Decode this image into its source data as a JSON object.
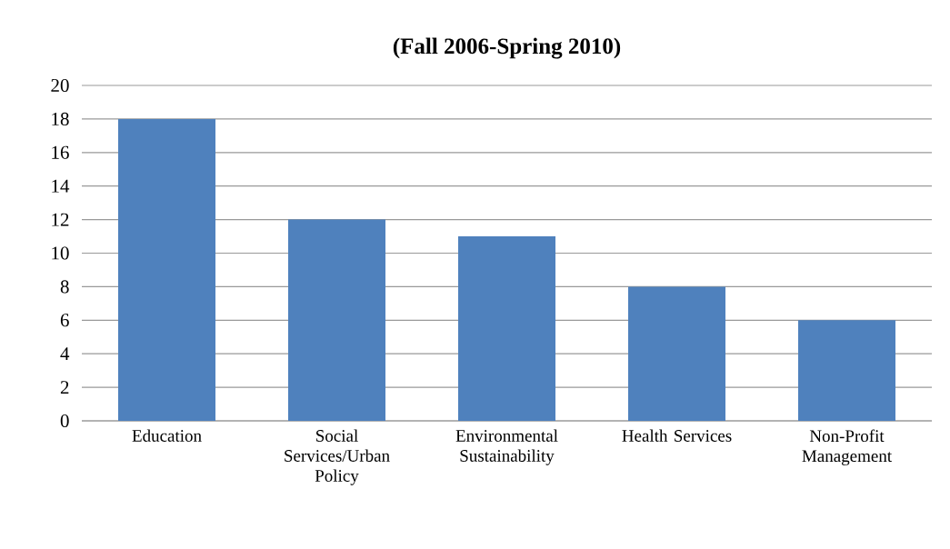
{
  "chart_data": {
    "type": "bar",
    "title": "(Fall 2006-Spring 2010)",
    "categories": [
      "Education",
      "Social Services/Urban Policy",
      "Environmental Sustainability",
      "Health Services",
      "Non-Profit Management"
    ],
    "values": [
      18,
      12,
      11,
      8,
      6
    ],
    "color": "#4f81bd",
    "ylim": [
      0,
      20
    ],
    "yticks": [
      0,
      2,
      4,
      6,
      8,
      10,
      12,
      14,
      16,
      18,
      20
    ],
    "grid": "y"
  }
}
